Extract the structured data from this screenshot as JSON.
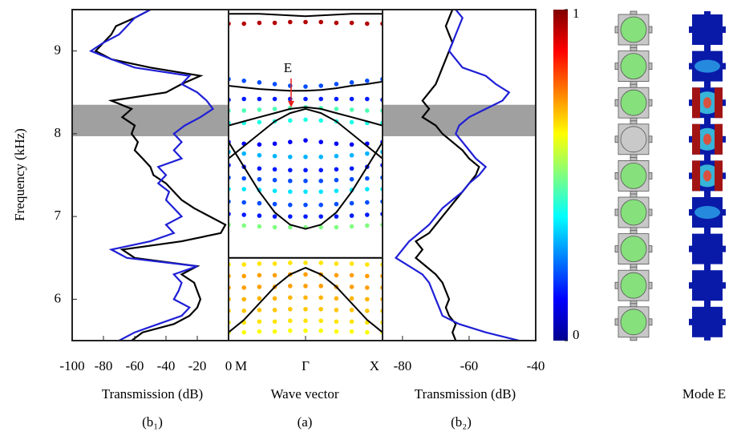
{
  "chart_data": [
    {
      "type": "line",
      "panel_label": "(b₁)",
      "xlabel": "Transmission (dB)",
      "ylabel": "Frequency (kHz)",
      "xlim": [
        -100,
        0
      ],
      "xticks": [
        -100,
        -80,
        -60,
        -40,
        -20,
        0
      ],
      "ylim": [
        5.5,
        9.5
      ],
      "yticks": [
        6,
        7,
        8,
        9
      ],
      "band": [
        7.97,
        8.35
      ],
      "frequency": [
        5.5,
        5.6,
        5.7,
        5.8,
        5.9,
        6.0,
        6.1,
        6.2,
        6.3,
        6.4,
        6.5,
        6.6,
        6.7,
        6.8,
        6.9,
        7.0,
        7.1,
        7.2,
        7.3,
        7.4,
        7.5,
        7.6,
        7.7,
        7.8,
        7.9,
        8.0,
        8.1,
        8.2,
        8.3,
        8.4,
        8.5,
        8.6,
        8.7,
        8.8,
        8.9,
        9.0,
        9.1,
        9.2,
        9.3,
        9.4,
        9.5
      ],
      "series": [
        {
          "color": "#000000",
          "values": [
            -62,
            -55,
            -35,
            -25,
            -20,
            -18,
            -20,
            -22,
            -30,
            -20,
            -60,
            -68,
            -30,
            -5,
            -2,
            -12,
            -22,
            -30,
            -35,
            -40,
            -48,
            -50,
            -55,
            -60,
            -58,
            -62,
            -60,
            -68,
            -62,
            -75,
            -40,
            -30,
            -18,
            -50,
            -75,
            -85,
            -80,
            -75,
            -72,
            -60,
            -50
          ]
        },
        {
          "color": "#1f1fd6",
          "values": [
            -70,
            -60,
            -45,
            -30,
            -25,
            -35,
            -32,
            -30,
            -35,
            -20,
            -65,
            -75,
            -50,
            -35,
            -40,
            -30,
            -35,
            -40,
            -38,
            -45,
            -40,
            -45,
            -30,
            -35,
            -30,
            -35,
            -28,
            -18,
            -10,
            -14,
            -20,
            -30,
            -25,
            -60,
            -75,
            -88,
            -80,
            -70,
            -65,
            -60,
            -50
          ]
        }
      ]
    },
    {
      "type": "band-structure",
      "panel_label": "(a)",
      "xlabel": "Wave vector",
      "xlim": [
        0,
        2
      ],
      "xticks": [
        {
          "value": 0,
          "label": "M"
        },
        {
          "value": 1,
          "label": "Γ"
        },
        {
          "value": 2,
          "label": "X"
        }
      ],
      "ylim": [
        5.5,
        9.5
      ],
      "k": [
        0,
        0.2,
        0.4,
        0.6,
        0.8,
        1.0,
        1.2,
        1.4,
        1.6,
        1.8,
        2.0
      ],
      "annotation": {
        "text": "E",
        "x": 1,
        "y": 8.3,
        "color": "#e8201a"
      },
      "curves": [
        {
          "color": "#000000",
          "values": [
            9.45,
            9.45,
            9.45,
            9.44,
            9.43,
            9.42,
            9.43,
            9.44,
            9.45,
            9.45,
            9.45
          ]
        },
        {
          "color": "#000000",
          "values": [
            8.58,
            8.56,
            8.54,
            8.53,
            8.52,
            8.52,
            8.53,
            8.55,
            8.58,
            8.6,
            8.63
          ]
        },
        {
          "color": "#000000",
          "values": [
            8.1,
            8.15,
            8.2,
            8.25,
            8.3,
            8.32,
            8.3,
            8.25,
            8.2,
            8.15,
            8.1
          ]
        },
        {
          "color": "#000000",
          "values": [
            7.7,
            7.85,
            8.0,
            8.15,
            8.25,
            8.3,
            8.25,
            8.15,
            8.0,
            7.85,
            7.7
          ]
        },
        {
          "color": "#000000",
          "values": [
            7.9,
            7.6,
            7.3,
            7.05,
            6.9,
            6.85,
            6.9,
            7.05,
            7.3,
            7.6,
            7.9
          ]
        },
        {
          "color": "#000000",
          "values": [
            6.5,
            6.5,
            6.5,
            6.5,
            6.5,
            6.5,
            6.5,
            6.5,
            6.5,
            6.5,
            6.5
          ]
        },
        {
          "color": "#000000",
          "values": [
            5.6,
            5.75,
            5.95,
            6.15,
            6.3,
            6.38,
            6.3,
            6.15,
            5.95,
            5.75,
            5.6
          ]
        }
      ],
      "dot_rows": [
        {
          "weight": 0.95,
          "values": [
            9.33,
            9.33,
            9.34,
            9.34,
            9.35,
            9.35,
            9.35,
            9.34,
            9.34,
            9.33,
            9.33
          ]
        },
        {
          "weight": 0.2,
          "values": [
            8.66,
            8.64,
            8.62,
            8.6,
            8.58,
            8.57,
            8.58,
            8.6,
            8.62,
            8.64,
            8.66
          ]
        },
        {
          "weight": 0.15,
          "values": [
            8.41,
            8.42,
            8.42,
            8.42,
            8.42,
            8.42,
            8.42,
            8.42,
            8.42,
            8.42,
            8.41
          ]
        },
        {
          "weight": 0.45,
          "values": [
            8.28,
            8.28,
            8.29,
            8.3,
            8.31,
            8.32,
            8.31,
            8.3,
            8.29,
            8.28,
            8.28
          ]
        },
        {
          "weight": 0.4,
          "values": [
            8.13,
            8.13,
            8.14,
            8.15,
            8.16,
            8.17,
            8.16,
            8.15,
            8.14,
            8.13,
            8.13
          ]
        },
        {
          "weight": 0.12,
          "values": [
            7.9,
            7.88,
            7.87,
            7.88,
            7.9,
            7.92,
            7.9,
            7.88,
            7.87,
            7.88,
            7.9
          ]
        },
        {
          "weight": 0.3,
          "values": [
            7.78,
            7.76,
            7.74,
            7.73,
            7.72,
            7.72,
            7.72,
            7.73,
            7.74,
            7.76,
            7.78
          ]
        },
        {
          "weight": 0.15,
          "values": [
            7.62,
            7.6,
            7.58,
            7.57,
            7.56,
            7.56,
            7.56,
            7.57,
            7.58,
            7.6,
            7.62
          ]
        },
        {
          "weight": 0.2,
          "values": [
            7.47,
            7.46,
            7.45,
            7.44,
            7.43,
            7.43,
            7.43,
            7.44,
            7.45,
            7.46,
            7.47
          ]
        },
        {
          "weight": 0.35,
          "values": [
            7.33,
            7.33,
            7.32,
            7.31,
            7.3,
            7.3,
            7.3,
            7.31,
            7.32,
            7.33,
            7.33
          ]
        },
        {
          "weight": 0.2,
          "values": [
            7.18,
            7.17,
            7.16,
            7.15,
            7.14,
            7.14,
            7.14,
            7.15,
            7.16,
            7.17,
            7.18
          ]
        },
        {
          "weight": 0.15,
          "values": [
            7.03,
            7.02,
            7.01,
            7.0,
            7.0,
            7.0,
            7.0,
            7.0,
            7.01,
            7.02,
            7.03
          ]
        },
        {
          "weight": 0.5,
          "values": [
            6.9,
            6.89,
            6.88,
            6.87,
            6.87,
            6.87,
            6.87,
            6.87,
            6.88,
            6.89,
            6.9
          ]
        },
        {
          "weight": 0.65,
          "values": [
            6.42,
            6.42,
            6.43,
            6.43,
            6.44,
            6.44,
            6.44,
            6.43,
            6.43,
            6.42,
            6.42
          ]
        },
        {
          "weight": 0.72,
          "values": [
            6.28,
            6.28,
            6.29,
            6.29,
            6.3,
            6.3,
            6.3,
            6.29,
            6.29,
            6.28,
            6.28
          ]
        },
        {
          "weight": 0.72,
          "values": [
            6.14,
            6.14,
            6.15,
            6.15,
            6.16,
            6.16,
            6.16,
            6.15,
            6.15,
            6.14,
            6.14
          ]
        },
        {
          "weight": 0.7,
          "values": [
            6.0,
            6.0,
            6.01,
            6.01,
            6.02,
            6.02,
            6.02,
            6.01,
            6.01,
            6.0,
            6.0
          ]
        },
        {
          "weight": 0.68,
          "values": [
            5.86,
            5.86,
            5.87,
            5.87,
            5.88,
            5.88,
            5.88,
            5.87,
            5.87,
            5.86,
            5.86
          ]
        },
        {
          "weight": 0.65,
          "values": [
            5.72,
            5.72,
            5.73,
            5.73,
            5.74,
            5.74,
            5.74,
            5.73,
            5.73,
            5.72,
            5.72
          ]
        },
        {
          "weight": 0.62,
          "values": [
            5.6,
            5.6,
            5.61,
            5.61,
            5.62,
            5.62,
            5.62,
            5.61,
            5.61,
            5.6,
            5.6
          ]
        }
      ]
    },
    {
      "type": "line",
      "panel_label": "(b₂)",
      "xlabel": "Transmission (dB)",
      "xlim": [
        -86,
        -40
      ],
      "xticks": [
        -80,
        -60,
        -40
      ],
      "ylim": [
        5.5,
        9.5
      ],
      "band": [
        7.97,
        8.35
      ],
      "frequency": [
        5.5,
        5.6,
        5.7,
        5.8,
        5.9,
        6.0,
        6.1,
        6.2,
        6.3,
        6.4,
        6.5,
        6.6,
        6.7,
        6.8,
        6.9,
        7.0,
        7.1,
        7.2,
        7.3,
        7.4,
        7.5,
        7.6,
        7.7,
        7.8,
        7.9,
        8.0,
        8.1,
        8.2,
        8.3,
        8.4,
        8.5,
        8.6,
        8.7,
        8.8,
        8.9,
        9.0,
        9.1,
        9.2,
        9.3,
        9.4,
        9.5
      ],
      "series": [
        {
          "color": "#000000",
          "values": [
            -64,
            -65,
            -64,
            -66,
            -67,
            -66,
            -67,
            -68,
            -70,
            -73,
            -76,
            -74,
            -76,
            -72,
            -70,
            -68,
            -66,
            -64,
            -62,
            -60,
            -58,
            -57,
            -60,
            -62,
            -65,
            -68,
            -70,
            -74,
            -72,
            -74,
            -72,
            -70,
            -69,
            -68,
            -67,
            -66,
            -65,
            -66,
            -67,
            -66,
            -65
          ]
        },
        {
          "color": "#1f1fd6",
          "values": [
            -45,
            -55,
            -63,
            -68,
            -69,
            -70,
            -71,
            -72,
            -74,
            -78,
            -82,
            -80,
            -78,
            -75,
            -72,
            -70,
            -68,
            -65,
            -62,
            -60,
            -57,
            -55,
            -58,
            -60,
            -62,
            -64,
            -63,
            -60,
            -55,
            -50,
            -48,
            -52,
            -55,
            -62,
            -64,
            -66,
            -65,
            -64,
            -63,
            -62,
            -64
          ]
        }
      ]
    },
    {
      "type": "colorbar",
      "clim": [
        0,
        1
      ],
      "ticks": [
        0,
        1
      ]
    }
  ],
  "figure": {
    "mode_label": "Mode E"
  }
}
